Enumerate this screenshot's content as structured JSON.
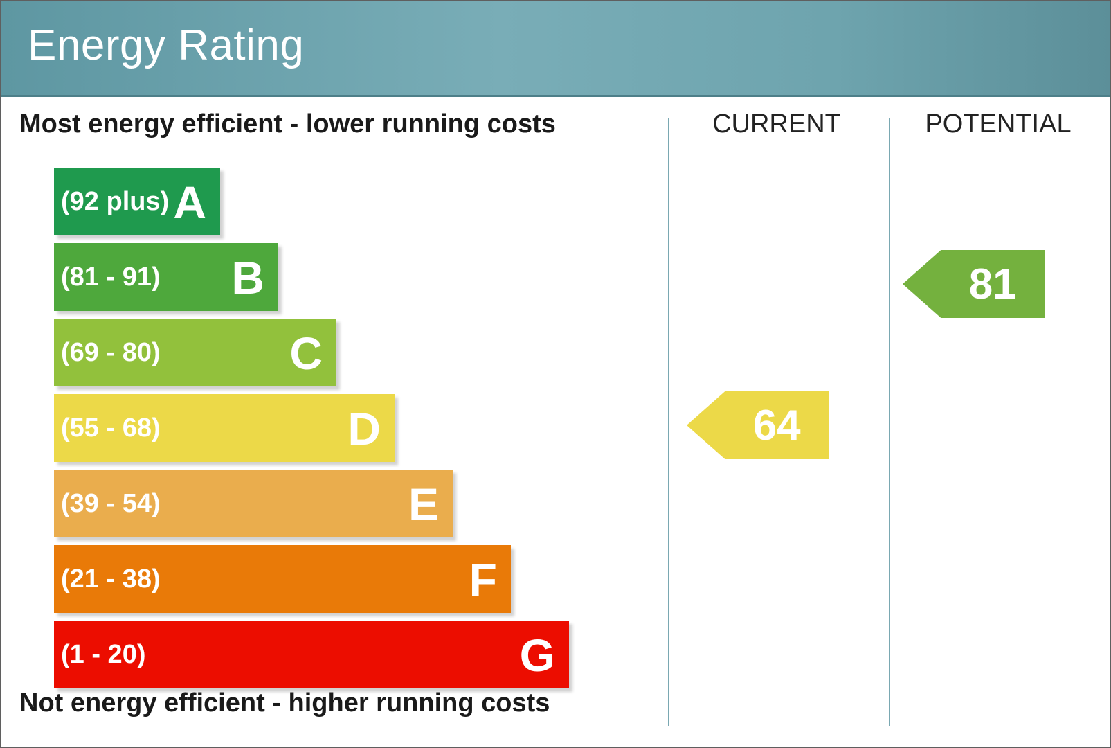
{
  "header": {
    "title": "Energy Rating"
  },
  "captions": {
    "top": "Most energy efficient - lower running costs",
    "bottom": "Not energy efficient - higher running costs"
  },
  "columns": {
    "current": "CURRENT",
    "potential": "POTENTIAL"
  },
  "chart_data": {
    "type": "bar",
    "title": "Energy Rating",
    "bands": [
      {
        "letter": "A",
        "range": "(92 plus)",
        "min": 92,
        "max": 100,
        "color": "#1f9a4e"
      },
      {
        "letter": "B",
        "range": "(81 - 91)",
        "min": 81,
        "max": 91,
        "color": "#4ea83c"
      },
      {
        "letter": "C",
        "range": "(69 - 80)",
        "min": 69,
        "max": 80,
        "color": "#92c13c"
      },
      {
        "letter": "D",
        "range": "(55 - 68)",
        "min": 55,
        "max": 68,
        "color": "#ecd948"
      },
      {
        "letter": "E",
        "range": "(39 - 54)",
        "min": 39,
        "max": 54,
        "color": "#eaad4d"
      },
      {
        "letter": "F",
        "range": "(21 - 38)",
        "min": 21,
        "max": 38,
        "color": "#e97a08"
      },
      {
        "letter": "G",
        "range": "(1 - 20)",
        "min": 1,
        "max": 20,
        "color": "#ec0d00"
      }
    ],
    "current": {
      "value": 64,
      "band": "D",
      "color": "#ecd948"
    },
    "potential": {
      "value": 81,
      "band": "B",
      "color": "#74b13e"
    }
  }
}
